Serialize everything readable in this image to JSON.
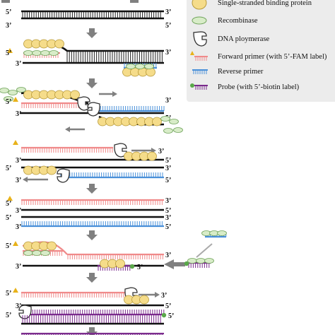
{
  "legend": {
    "ssb": "Single-stranded binding protein",
    "recombinase": "Recombinase",
    "polymerase": "DNA ploymerase",
    "forward_primer": "Forward primer (with 5’-FAM label)",
    "reverse_primer": "Reverse primer",
    "probe": "Probe (with 5’-biotin label)"
  },
  "labels": {
    "five_prime": "5’",
    "three_prime": "3’"
  },
  "colors": {
    "dna": "#111111",
    "forward_primer": "#f08a8a",
    "reverse_primer": "#4a90d9",
    "probe": "#7a2a8c",
    "ssb_fill": "#f5dc8a",
    "ssb_stroke": "#b89a3a",
    "recombinase_fill": "#d8ecc8",
    "recombinase_stroke": "#6fa35a",
    "fam_label": "#e8b21a",
    "biotin_label": "#5aa84a",
    "arrow": "#808080",
    "legend_bg": "#ececec"
  },
  "icons": [
    "ssb-icon",
    "recombinase-icon",
    "polymerase-icon",
    "forward-primer-icon",
    "reverse-primer-icon",
    "probe-icon",
    "down-arrow-icon",
    "right-arrow-icon",
    "left-arrow-icon"
  ]
}
